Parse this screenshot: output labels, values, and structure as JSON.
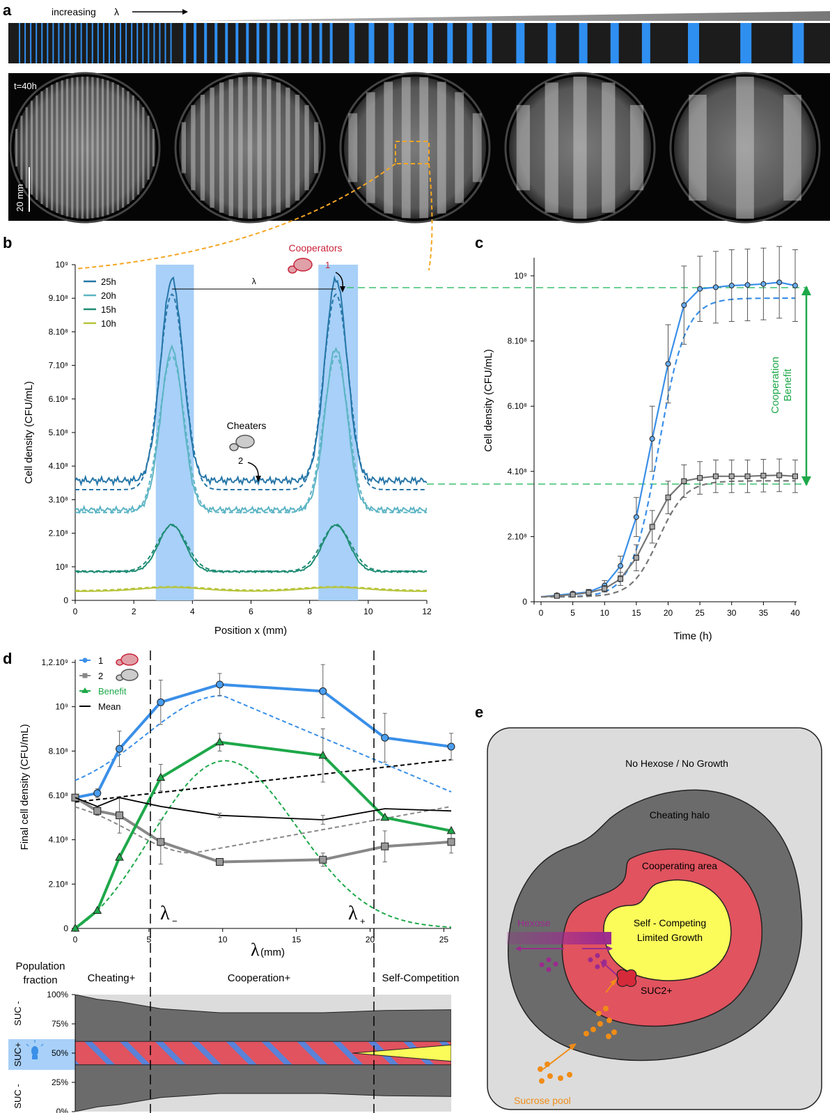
{
  "panels": {
    "a": "a",
    "b": "b",
    "c": "c",
    "d": "d",
    "e": "e"
  },
  "panel_a": {
    "caption_prefix": "increasing",
    "caption_symbol": "λ",
    "time_label": "t=40h",
    "scale_bar": "20 mm",
    "stripe_groups": [
      {
        "n": 28,
        "w": 2
      },
      {
        "n": 15,
        "w": 4
      },
      {
        "n": 8,
        "w": 8
      },
      {
        "n": 5,
        "w": 12
      },
      {
        "n": 3,
        "w": 16
      }
    ],
    "colors": {
      "stripe": "#2f8ff0",
      "mask_bg": "#1c1c1c",
      "wedge": "#888888"
    }
  },
  "chart_data": [
    {
      "id": "b",
      "type": "line",
      "xlabel": "Position x (mm)",
      "ylabel": "Cell density (CFU/mL)",
      "xlim": [
        0,
        12
      ],
      "ylim": [
        0,
        1000000000
      ],
      "xticks": [
        "0",
        "2",
        "4",
        "6",
        "8",
        "10",
        "12"
      ],
      "yticks": [
        "0",
        "10⁸",
        "2.10⁸",
        "3.10⁸",
        "4.10⁸",
        "5.10⁸",
        "6.10⁸",
        "7.10⁸",
        "8.10⁸",
        "9.10⁸",
        "10⁹"
      ],
      "stripes_mm": [
        [
          2.75,
          4.05
        ],
        [
          8.3,
          9.65
        ]
      ],
      "peak_centers_mm": [
        3.3,
        8.9
      ],
      "lambda_label": "λ",
      "annotations": {
        "cooperators": "Cooperators",
        "cooperators_n": "1",
        "cheaters": "Cheaters",
        "cheaters_n": "2"
      },
      "series": [
        {
          "name": "25h",
          "color": "#2676a8",
          "base": 340000000,
          "peak": 940000000,
          "sigma": 0.42
        },
        {
          "name": "20h",
          "color": "#5cb4c4",
          "base": 270000000,
          "peak": 750000000,
          "sigma": 0.42
        },
        {
          "name": "15h",
          "color": "#1f8c73",
          "base": 90000000,
          "peak": 230000000,
          "sigma": 0.5
        },
        {
          "name": "10h",
          "color": "#b6c43a",
          "base": 30000000,
          "peak": 42000000,
          "sigma": 1.2
        }
      ]
    },
    {
      "id": "c",
      "type": "line",
      "xlabel": "Time (h)",
      "ylabel": "Cell density (CFU/mL)",
      "xlim": [
        0,
        40
      ],
      "ylim": [
        0,
        1000000000
      ],
      "xticks": [
        "0",
        "5",
        "10",
        "15",
        "20",
        "25",
        "30",
        "35",
        "40"
      ],
      "yticks": [
        "0",
        "2.10⁸",
        "4.10⁸",
        "6.10⁸",
        "8.10⁸",
        "10⁹"
      ],
      "benefit_label_1": "Cooperation",
      "benefit_label_2": "Benefit",
      "x": [
        2.5,
        5,
        7.5,
        10,
        12.5,
        15,
        17.5,
        20,
        22.5,
        25,
        27.5,
        30,
        32.5,
        35,
        37.5,
        40
      ],
      "series": [
        {
          "name": "1",
          "color": "#3a8fe8",
          "values": [
            20000000,
            25000000,
            30000000,
            50000000,
            110000000,
            260000000,
            500000000,
            730000000,
            910000000,
            960000000,
            965000000,
            970000000,
            972000000,
            975000000,
            980000000,
            970000000
          ],
          "err": [
            5000000,
            5000000,
            8000000,
            15000000,
            30000000,
            60000000,
            100000000,
            120000000,
            120000000,
            100000000,
            110000000,
            110000000,
            110000000,
            110000000,
            110000000,
            110000000
          ]
        },
        {
          "name": "2",
          "color": "#777777",
          "values": [
            18000000,
            22000000,
            28000000,
            40000000,
            70000000,
            135000000,
            230000000,
            320000000,
            370000000,
            380000000,
            385000000,
            385000000,
            385000000,
            387000000,
            388000000,
            385000000
          ],
          "err": [
            5000000,
            5000000,
            8000000,
            10000000,
            20000000,
            40000000,
            50000000,
            50000000,
            50000000,
            50000000,
            50000000,
            50000000,
            50000000,
            50000000,
            50000000,
            50000000
          ]
        }
      ]
    },
    {
      "id": "d",
      "type": "line",
      "xlabel": "(mm)",
      "xlabel_symbol": "λ",
      "ylabel": "Final cell density (CFU/mL)",
      "xlim": [
        0,
        25.5
      ],
      "ylim": [
        0,
        1200000000
      ],
      "xticks": [
        "0",
        "5",
        "10",
        "15",
        "20",
        "25"
      ],
      "yticks": [
        "0",
        "2.10⁸",
        "4.10⁸",
        "6.10⁸",
        "8.10⁸",
        "10⁹",
        "1,2.10⁹"
      ],
      "thresholds": [
        {
          "label": "λ",
          "sub": "−",
          "x": 5.1
        },
        {
          "label": "λ",
          "sub": "+",
          "x": 20
        }
      ],
      "legend": [
        "1",
        "2",
        "Benefit",
        "Mean"
      ],
      "series": [
        {
          "name": "1",
          "color": "#3a8fe8",
          "x": [
            0,
            1.5,
            3,
            5.8,
            9.8,
            16.8,
            21,
            25.5
          ],
          "values": [
            590000000,
            610000000,
            810000000,
            1020000000,
            1100000000,
            1070000000,
            860000000,
            820000000
          ],
          "err": [
            0,
            20000000,
            80000000,
            100000000,
            50000000,
            120000000,
            110000000,
            60000000
          ]
        },
        {
          "name": "2",
          "color": "#888888",
          "x": [
            0,
            1.5,
            3,
            5.8,
            9.8,
            16.8,
            21,
            25.5
          ],
          "values": [
            590000000,
            530000000,
            510000000,
            390000000,
            300000000,
            310000000,
            370000000,
            390000000
          ],
          "err": [
            0,
            20000000,
            80000000,
            100000000,
            10000000,
            30000000,
            70000000,
            50000000
          ]
        },
        {
          "name": "Benefit",
          "color": "#1ea84a",
          "x": [
            0,
            1.5,
            3,
            5.8,
            9.8,
            16.8,
            21,
            25.5
          ],
          "values": [
            0,
            80000000,
            320000000,
            680000000,
            840000000,
            780000000,
            500000000,
            440000000
          ],
          "err": [
            0,
            0,
            0,
            60000000,
            40000000,
            120000000,
            0,
            0
          ]
        },
        {
          "name": "Mean",
          "color": "#000000",
          "x": [
            0,
            1.5,
            3,
            5.8,
            9.8,
            16.8,
            21,
            25.5
          ],
          "values": [
            590000000,
            550000000,
            590000000,
            550000000,
            510000000,
            490000000,
            540000000,
            530000000
          ],
          "err": [
            0,
            0,
            0,
            0,
            10000000,
            20000000,
            0,
            0
          ]
        }
      ]
    },
    {
      "id": "d-fraction",
      "type": "area",
      "title": "Population fraction",
      "region_labels": [
        "Cheating+",
        "Cooperation+",
        "Self-Competition"
      ],
      "yticks": [
        "0%",
        "25%",
        "50%",
        "75%",
        "100%"
      ],
      "side_labels": [
        "SUC -",
        "SUC+",
        "SUC -"
      ],
      "x": [
        0,
        1.5,
        3,
        5.8,
        9.8,
        16.8,
        21,
        25.5
      ],
      "upper_boundary": [
        1.0,
        0.96,
        0.94,
        0.88,
        0.845,
        0.845,
        0.865,
        0.87
      ],
      "lower_boundary": [
        0.0,
        0.04,
        0.06,
        0.12,
        0.155,
        0.155,
        0.135,
        0.13
      ]
    }
  ],
  "panel_e": {
    "outer": "No Hexose / No Growth",
    "halo": "Cheating halo",
    "coop": "Cooperating area",
    "core_line1": "Self - Competing",
    "core_line2": "Limited Growth",
    "hexose": "Hexose",
    "enzyme": "SUC2+",
    "pool": "Sucrose pool",
    "colors": {
      "outer": "#dcdcdc",
      "halo": "#6b6b6b",
      "coop": "#e0535f",
      "core": "#fbfb5a",
      "hexose": "#9b2a8f",
      "sucrose": "#f08c16"
    }
  }
}
